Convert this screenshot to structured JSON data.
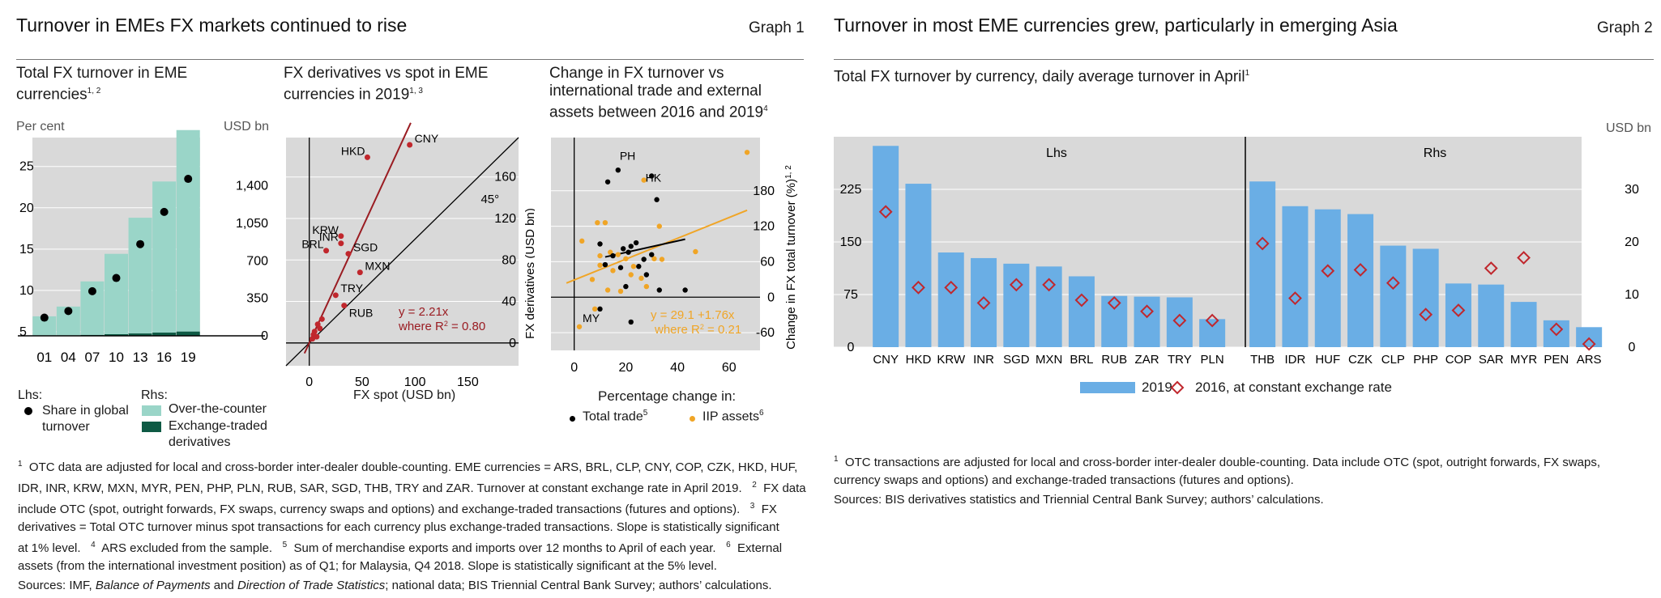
{
  "graph1": {
    "title": "Turnover in EMEs FX markets continued to rise",
    "number": "Graph 1",
    "panel_a": {
      "title": "Total FX turnover in EME currencies",
      "title_sup": "1, 2",
      "lhs_unit": "Per cent",
      "rhs_unit": "USD bn",
      "legend": {
        "lhs_head": "Lhs:",
        "lhs_item": "Share in global turnover",
        "rhs_head": "Rhs:",
        "rhs_items": [
          "Over-the-counter",
          "Exchange-traded derivatives"
        ]
      }
    },
    "panel_b": {
      "title": "FX derivatives vs spot in EME currencies in 2019",
      "title_sup": "1, 3",
      "xlabel": "FX spot (USD bn)",
      "ylabel": "FX derivatives (USD bn)",
      "line45_label": "45°",
      "fit_label_1": "y = 2.21x",
      "fit_label_2": "where R",
      "fit_label_2b": " = 0.80"
    },
    "panel_c": {
      "title": "Change in FX turnover vs international trade and external assets between 2016 and 2019",
      "title_sup": "4",
      "ylabel": "Change in FX total turnover (%)",
      "ylabel_sup": "1, 2",
      "xlabel": "Percentage change in:",
      "fit_label_1": "y = 29.1 +1.76x",
      "fit_label_2": "where R",
      "fit_label_2b": " = 0.21",
      "legend": [
        "Total trade",
        "IIP assets"
      ],
      "legend_sups": [
        "5",
        "6"
      ]
    },
    "footnotes": [
      "OTC data are adjusted for local and cross-border inter-dealer double-counting. EME currencies = ARS, BRL, CLP, CNY, COP, CZK, HKD, HUF,",
      "IDR, INR, KRW, MXN, MYR, PEN, PHP, PLN, RUB, SAR, SGD, THB, TRY and ZAR. Turnover at constant exchange rate in April 2019.",
      "FX data",
      "include OTC (spot, outright forwards, FX swaps, currency swaps and options) and exchange-traded transactions (futures and options).",
      "FX",
      "derivatives = Total OTC turnover minus spot transactions for each currency plus exchange-traded transactions. Slope is statistically significant",
      "at 1% level.",
      "ARS excluded from the sample.",
      "Sum of merchandise exports and imports over 12 months to April of each year.",
      "External",
      "assets (from the international investment position) as of Q1; for Malaysia, Q4 2018. Slope is statistically significant at the 5% level."
    ],
    "sources_head": "Sources: IMF, ",
    "sources_i1": "Balance of Payments",
    "sources_and": " and ",
    "sources_i2": "Direction of Trade Statistics",
    "sources_tail": "; national data; BIS Triennial Central Bank Survey; authors’ calculations."
  },
  "graph2": {
    "title": "Turnover in most EME currencies grew, particularly in emerging Asia",
    "number": "Graph 2",
    "subtitle": "Total FX turnover by currency, daily average turnover in April",
    "subtitle_sup": "1",
    "rhs_unit": "USD bn",
    "lhs_label": "Lhs",
    "rhs_label": "Rhs",
    "legend": [
      "2019",
      "2016, at constant exchange rate"
    ],
    "footnote_1": "OTC transactions are adjusted for local and cross-border inter-dealer double-counting. Data include OTC (spot, outright forwards, FX swaps,",
    "footnote_2": "currency swaps and options) and exchange-traded transactions (futures and options).",
    "sources": "Sources: BIS derivatives statistics and Triennial Central Bank Survey; authors’ calculations."
  },
  "chart_data": [
    {
      "type": "bar",
      "title": "Total FX turnover in EME currencies",
      "categories": [
        "01",
        "04",
        "07",
        "10",
        "13",
        "16",
        "19"
      ],
      "series": [
        {
          "name": "Over-the-counter",
          "axis": "rhs",
          "values": [
            180,
            270,
            500,
            750,
            1080,
            1410,
            1880
          ]
        },
        {
          "name": "Exchange-traded derivatives",
          "axis": "rhs",
          "values": [
            2,
            3,
            8,
            15,
            22,
            30,
            40
          ]
        },
        {
          "name": "Share in global turnover",
          "axis": "lhs",
          "type": "scatter",
          "values": [
            6.7,
            7.5,
            9.9,
            11.5,
            15.6,
            19.5,
            23.5
          ]
        }
      ],
      "lhs_ticks": [
        5,
        10,
        15,
        20,
        25
      ],
      "lhs_lim": [
        4.5,
        28.5
      ],
      "rhs_ticks": [
        0,
        350,
        700,
        1050,
        1400
      ],
      "rhs_lim": [
        0,
        1850
      ],
      "colors": {
        "otc": "#9ad5c8",
        "etd": "#0e5a44",
        "dots": "#000000"
      }
    },
    {
      "type": "scatter",
      "title": "FX derivatives vs spot in EME currencies in 2019",
      "x_ticks": [
        0,
        50,
        100,
        150
      ],
      "xlim": [
        -22,
        198
      ],
      "y_ticks": [
        0,
        40,
        80,
        120,
        160
      ],
      "ylim": [
        -22,
        198
      ],
      "points": [
        {
          "label": "CNY",
          "x": 95,
          "y": 191
        },
        {
          "label": "HKD",
          "x": 55,
          "y": 179
        },
        {
          "label": "KRW",
          "x": 30,
          "y": 103
        },
        {
          "label": "INR",
          "x": 30,
          "y": 96
        },
        {
          "label": "BRL",
          "x": 16,
          "y": 89
        },
        {
          "label": "SGD",
          "x": 37,
          "y": 86
        },
        {
          "label": "MXN",
          "x": 48,
          "y": 68
        },
        {
          "label": "TRY",
          "x": 25,
          "y": 46
        },
        {
          "label": "RUB",
          "x": 33,
          "y": 36
        },
        {
          "x": 5,
          "y": 11
        },
        {
          "x": 8,
          "y": 18
        },
        {
          "x": 10,
          "y": 14
        },
        {
          "x": 4,
          "y": 8
        },
        {
          "x": 12,
          "y": 23
        },
        {
          "x": 7,
          "y": 6
        },
        {
          "x": 3,
          "y": 4
        }
      ],
      "fit_slope": 2.21,
      "colors": {
        "points": "#c0272d",
        "fit": "#9a1c22",
        "diag": "#000000"
      }
    },
    {
      "type": "scatter",
      "title": "Change in FX turnover vs international trade and external assets between 2016 and 2019",
      "x_ticks": [
        0,
        20,
        40,
        60
      ],
      "xlim": [
        -9,
        72
      ],
      "y_ticks": [
        -60,
        0,
        60,
        120,
        180
      ],
      "ylim": [
        -90,
        270
      ],
      "series": [
        {
          "name": "Total trade",
          "points": [
            [
              17,
              215
            ],
            [
              30,
              205
            ],
            [
              13,
              195
            ],
            [
              32,
              165
            ],
            [
              10,
              90
            ],
            [
              12,
              55
            ],
            [
              19,
              82
            ],
            [
              22,
              86
            ],
            [
              24,
              92
            ],
            [
              21,
              76
            ],
            [
              27,
              64
            ],
            [
              30,
              72
            ],
            [
              25,
              52
            ],
            [
              18,
              50
            ],
            [
              15,
              70
            ],
            [
              33,
              12
            ],
            [
              43,
              12
            ],
            [
              20,
              18
            ],
            [
              10,
              -20
            ],
            [
              22,
              -42
            ],
            [
              28,
              38
            ]
          ]
        },
        {
          "name": "IIP assets",
          "points": [
            [
              67,
              245
            ],
            [
              27,
              198
            ],
            [
              9,
              126
            ],
            [
              12,
              126
            ],
            [
              33,
              120
            ],
            [
              3,
              95
            ],
            [
              47,
              77
            ],
            [
              10,
              70
            ],
            [
              14,
              76
            ],
            [
              17,
              72
            ],
            [
              20,
              65
            ],
            [
              31,
              65
            ],
            [
              34,
              64
            ],
            [
              23,
              52
            ],
            [
              10,
              54
            ],
            [
              15,
              45
            ],
            [
              7,
              30
            ],
            [
              13,
              12
            ],
            [
              22,
              38
            ],
            [
              26,
              32
            ],
            [
              18,
              10
            ],
            [
              8,
              -20
            ],
            [
              28,
              18
            ],
            [
              2,
              -50
            ]
          ],
          "labels": [
            {
              "label": "PH",
              "x": 17,
              "y": 224
            },
            {
              "label": "HK",
              "x": 27,
              "y": 198
            },
            {
              "label": "MY",
              "x": 2,
              "y": -50
            }
          ]
        }
      ],
      "fit_trade": {
        "intercept": 29.1,
        "slope": 1.76
      },
      "colors": {
        "trade": "#000000",
        "iip": "#f0a526",
        "fit": "#f0a526"
      }
    },
    {
      "type": "bar",
      "title": "Total FX turnover by currency, daily average turnover in April",
      "groups": [
        {
          "name": "Lhs",
          "categories": [
            "CNY",
            "HKD",
            "KRW",
            "INR",
            "SGD",
            "MXN",
            "BRL",
            "RUB",
            "ZAR",
            "TRY",
            "PLN"
          ],
          "series": [
            {
              "name": "2019",
              "values": [
                287,
                233,
                135,
                127,
                119,
                115,
                101,
                73,
                72,
                71,
                40
              ]
            },
            {
              "name": "2016, at constant exchange rate",
              "values": [
                193,
                85,
                85,
                63,
                89,
                89,
                67,
                63,
                51,
                38,
                38
              ]
            }
          ],
          "ticks": [
            0,
            75,
            150,
            225
          ]
        },
        {
          "name": "Rhs",
          "categories": [
            "THB",
            "IDR",
            "HUF",
            "CZK",
            "CLP",
            "PHP",
            "COP",
            "SAR",
            "MYR",
            "PEN",
            "ARS"
          ],
          "series": [
            {
              "name": "2019",
              "values": [
                31.5,
                26.8,
                26.2,
                25.3,
                19.3,
                18.7,
                12.1,
                11.9,
                8.6,
                5.1,
                3.8
              ]
            },
            {
              "name": "2016, at constant exchange rate",
              "values": [
                19.7,
                9.3,
                14.5,
                14.7,
                12.2,
                6.2,
                7.0,
                15.0,
                17.0,
                3.4,
                0.6
              ]
            }
          ],
          "ticks": [
            0,
            10,
            20,
            30
          ]
        }
      ],
      "colors": {
        "bars": "#6aaee5",
        "markers": "#c0272d",
        "panel": "#d9d9d9"
      }
    }
  ]
}
